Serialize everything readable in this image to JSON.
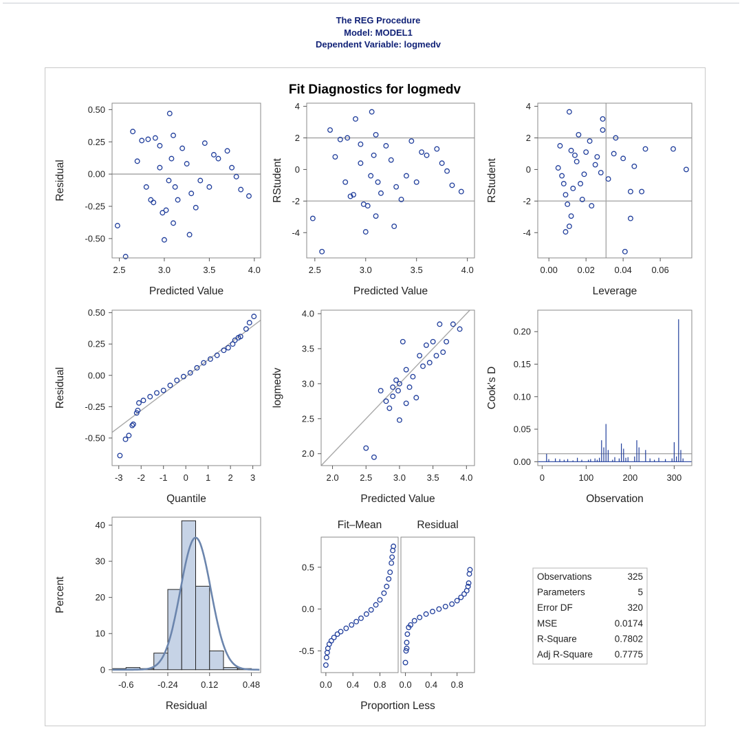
{
  "header": {
    "line1": "The REG Procedure",
    "line2": "Model: MODEL1",
    "line3": "Dependent Variable: logmedv"
  },
  "colors": {
    "header_text": "#112277",
    "markers": "#1f3d9b",
    "bar_fill": "#c6d3e6",
    "density_curve": "#6b85ad",
    "reference_lines": "#a8a8a8"
  },
  "chart_data": [
    {
      "id": "title",
      "type": "text",
      "title": "Fit Diagnostics for logmedv"
    },
    {
      "id": "resid_vs_pred",
      "type": "scatter",
      "xlabel": "Predicted Value",
      "ylabel": "Residual",
      "xlim": [
        2.42,
        4.07
      ],
      "ylim": [
        -0.65,
        0.55
      ],
      "xticks": [
        "2.5",
        "3.0",
        "3.5",
        "4.0"
      ],
      "yticks": [
        "0.50",
        "0.25",
        "0.00",
        "-0.25",
        "-0.50"
      ],
      "reference_y": [
        0
      ],
      "points": [
        [
          2.48,
          -0.4
        ],
        [
          2.57,
          -0.64
        ],
        [
          2.65,
          0.33
        ],
        [
          3.06,
          0.47
        ],
        [
          3.0,
          -0.51
        ],
        [
          3.28,
          -0.47
        ],
        [
          3.1,
          -0.38
        ],
        [
          2.98,
          -0.3
        ],
        [
          3.02,
          -0.28
        ],
        [
          2.85,
          -0.2
        ],
        [
          2.88,
          -0.22
        ],
        [
          3.35,
          -0.26
        ],
        [
          3.94,
          -0.17
        ],
        [
          3.85,
          -0.12
        ],
        [
          3.7,
          0.18
        ],
        [
          3.45,
          0.24
        ],
        [
          2.75,
          0.26
        ],
        [
          2.82,
          0.27
        ],
        [
          2.9,
          0.28
        ],
        [
          3.1,
          0.3
        ],
        [
          2.95,
          0.22
        ],
        [
          3.2,
          0.2
        ],
        [
          2.7,
          0.1
        ],
        [
          3.6,
          0.12
        ],
        [
          3.5,
          -0.1
        ],
        [
          3.3,
          -0.15
        ],
        [
          3.15,
          -0.2
        ],
        [
          2.95,
          0.05
        ],
        [
          3.05,
          -0.05
        ],
        [
          3.25,
          0.08
        ],
        [
          3.4,
          -0.05
        ],
        [
          3.75,
          0.05
        ],
        [
          3.8,
          -0.02
        ],
        [
          3.55,
          0.15
        ],
        [
          2.8,
          -0.1
        ],
        [
          3.08,
          0.12
        ],
        [
          3.12,
          -0.1
        ]
      ]
    },
    {
      "id": "rstudent_vs_pred",
      "type": "scatter",
      "xlabel": "Predicted Value",
      "ylabel": "RStudent",
      "xlim": [
        2.42,
        4.07
      ],
      "ylim": [
        -5.6,
        4.2
      ],
      "xticks": [
        "2.5",
        "3.0",
        "3.5",
        "4.0"
      ],
      "yticks": [
        "4",
        "2",
        "0",
        "-2",
        "-4"
      ],
      "reference_y": [
        -2,
        2
      ],
      "points": [
        [
          2.48,
          -3.1
        ],
        [
          2.57,
          -5.2
        ],
        [
          2.65,
          2.5
        ],
        [
          3.06,
          3.65
        ],
        [
          3.0,
          -3.95
        ],
        [
          3.28,
          -3.6
        ],
        [
          3.1,
          -2.95
        ],
        [
          2.98,
          -2.2
        ],
        [
          3.02,
          -2.3
        ],
        [
          2.85,
          -1.7
        ],
        [
          2.88,
          -1.6
        ],
        [
          3.35,
          -1.9
        ],
        [
          3.94,
          -1.4
        ],
        [
          3.85,
          -1.0
        ],
        [
          3.7,
          1.3
        ],
        [
          3.45,
          1.8
        ],
        [
          2.75,
          1.9
        ],
        [
          2.82,
          2.0
        ],
        [
          2.9,
          3.2
        ],
        [
          3.1,
          2.2
        ],
        [
          2.95,
          1.6
        ],
        [
          3.2,
          1.5
        ],
        [
          2.7,
          0.8
        ],
        [
          3.6,
          0.9
        ],
        [
          3.5,
          -0.8
        ],
        [
          3.3,
          -1.1
        ],
        [
          3.15,
          -1.5
        ],
        [
          2.95,
          0.4
        ],
        [
          3.05,
          -0.4
        ],
        [
          3.25,
          0.6
        ],
        [
          3.4,
          -0.4
        ],
        [
          3.75,
          0.4
        ],
        [
          3.8,
          -0.1
        ],
        [
          3.55,
          1.1
        ],
        [
          2.8,
          -0.8
        ],
        [
          3.08,
          0.9
        ],
        [
          3.12,
          -0.8
        ]
      ]
    },
    {
      "id": "rstudent_vs_leverage",
      "type": "scatter",
      "xlabel": "Leverage",
      "ylabel": "RStudent",
      "xlim": [
        -0.006,
        0.077
      ],
      "ylim": [
        -5.6,
        4.2
      ],
      "xticks": [
        "0.00",
        "0.02",
        "0.04",
        "0.06"
      ],
      "yticks": [
        "4",
        "2",
        "0",
        "-2",
        "-4"
      ],
      "reference_y": [
        -2,
        2
      ],
      "reference_x": [
        0.0308
      ],
      "points": [
        [
          0.011,
          3.65
        ],
        [
          0.029,
          3.2
        ],
        [
          0.029,
          2.5
        ],
        [
          0.036,
          2.0
        ],
        [
          0.018,
          -1.9
        ],
        [
          0.023,
          -2.3
        ],
        [
          0.012,
          -2.95
        ],
        [
          0.011,
          -3.6
        ],
        [
          0.009,
          -3.95
        ],
        [
          0.041,
          -5.2
        ],
        [
          0.044,
          -3.1
        ],
        [
          0.052,
          1.3
        ],
        [
          0.067,
          1.3
        ],
        [
          0.074,
          0.0
        ],
        [
          0.044,
          -1.4
        ],
        [
          0.05,
          -1.4
        ],
        [
          0.046,
          0.2
        ],
        [
          0.04,
          0.7
        ],
        [
          0.035,
          1.0
        ],
        [
          0.032,
          -0.6
        ],
        [
          0.025,
          0.3
        ],
        [
          0.02,
          1.1
        ],
        [
          0.015,
          0.5
        ],
        [
          0.005,
          0.1
        ],
        [
          0.007,
          -0.4
        ],
        [
          0.013,
          -1.2
        ],
        [
          0.017,
          -0.9
        ],
        [
          0.028,
          -0.2
        ],
        [
          0.022,
          1.8
        ],
        [
          0.016,
          2.2
        ],
        [
          0.006,
          1.5
        ],
        [
          0.009,
          -1.6
        ],
        [
          0.01,
          -2.2
        ],
        [
          0.014,
          0.9
        ],
        [
          0.008,
          -0.9
        ],
        [
          0.012,
          1.2
        ],
        [
          0.019,
          -0.3
        ],
        [
          0.026,
          0.8
        ]
      ]
    },
    {
      "id": "resid_qq",
      "type": "scatter",
      "xlabel": "Quantile",
      "ylabel": "Residual",
      "xlim": [
        -3.3,
        3.35
      ],
      "ylim": [
        -0.72,
        0.52
      ],
      "xticks": [
        "-3",
        "-2",
        "-1",
        "0",
        "1",
        "2",
        "3"
      ],
      "yticks": [
        "0.50",
        "0.25",
        "0.00",
        "-0.25",
        "-0.50"
      ],
      "reference_line": [
        [
          -3.3,
          -0.455
        ],
        [
          3.35,
          0.44
        ]
      ],
      "points": [
        [
          -2.95,
          -0.64
        ],
        [
          -2.7,
          -0.51
        ],
        [
          -2.55,
          -0.48
        ],
        [
          -2.4,
          -0.4
        ],
        [
          -2.35,
          -0.39
        ],
        [
          -2.2,
          -0.3
        ],
        [
          -2.15,
          -0.28
        ],
        [
          -2.1,
          -0.22
        ],
        [
          -1.9,
          -0.2
        ],
        [
          -1.6,
          -0.17
        ],
        [
          -1.3,
          -0.14
        ],
        [
          -1.0,
          -0.12
        ],
        [
          -0.7,
          -0.08
        ],
        [
          -0.4,
          -0.04
        ],
        [
          -0.1,
          -0.01
        ],
        [
          0.2,
          0.02
        ],
        [
          0.5,
          0.06
        ],
        [
          0.8,
          0.1
        ],
        [
          1.1,
          0.13
        ],
        [
          1.4,
          0.16
        ],
        [
          1.7,
          0.2
        ],
        [
          1.9,
          0.22
        ],
        [
          2.1,
          0.25
        ],
        [
          2.2,
          0.28
        ],
        [
          2.35,
          0.3
        ],
        [
          2.45,
          0.31
        ],
        [
          2.7,
          0.37
        ],
        [
          2.85,
          0.42
        ],
        [
          3.05,
          0.47
        ]
      ]
    },
    {
      "id": "obs_vs_pred",
      "type": "scatter",
      "xlabel": "Predicted Value",
      "ylabel": "logmedv",
      "xlim": [
        1.83,
        4.12
      ],
      "ylim": [
        1.83,
        4.05
      ],
      "xticks": [
        "2.0",
        "2.5",
        "3.0",
        "3.5",
        "4.0"
      ],
      "yticks": [
        "4.0",
        "3.5",
        "3.0",
        "2.5",
        "2.0"
      ],
      "reference_line": [
        [
          1.83,
          1.83
        ],
        [
          4.05,
          4.05
        ]
      ],
      "points": [
        [
          2.5,
          2.08
        ],
        [
          2.62,
          1.95
        ],
        [
          3.0,
          2.48
        ],
        [
          2.72,
          2.9
        ],
        [
          2.8,
          2.75
        ],
        [
          2.85,
          2.65
        ],
        [
          2.9,
          2.82
        ],
        [
          3.1,
          2.72
        ],
        [
          3.25,
          2.8
        ],
        [
          3.05,
          3.6
        ],
        [
          3.3,
          3.4
        ],
        [
          3.6,
          3.85
        ],
        [
          3.8,
          3.85
        ],
        [
          3.9,
          3.78
        ],
        [
          3.7,
          3.6
        ],
        [
          3.5,
          3.6
        ],
        [
          3.4,
          3.55
        ],
        [
          3.45,
          3.3
        ],
        [
          3.2,
          3.1
        ],
        [
          3.0,
          3.0
        ],
        [
          2.95,
          3.05
        ],
        [
          2.9,
          2.95
        ],
        [
          3.1,
          3.2
        ],
        [
          3.55,
          3.4
        ],
        [
          3.65,
          3.45
        ],
        [
          3.35,
          3.25
        ],
        [
          2.98,
          2.9
        ],
        [
          3.15,
          2.95
        ]
      ]
    },
    {
      "id": "cooks_d",
      "type": "bar",
      "xlabel": "Observation",
      "ylabel": "Cook's D",
      "xlim": [
        -10,
        340
      ],
      "ylim": [
        -0.006,
        0.233
      ],
      "xticks": [
        "0",
        "100",
        "200",
        "300"
      ],
      "yticks": [
        "0.20",
        "0.15",
        "0.10",
        "0.05",
        "0.00"
      ],
      "reference_y": [
        0.0123
      ],
      "x": [
        10,
        15,
        30,
        40,
        50,
        58,
        70,
        80,
        90,
        105,
        110,
        120,
        125,
        130,
        135,
        140,
        145,
        150,
        160,
        165,
        175,
        180,
        185,
        190,
        195,
        210,
        215,
        220,
        235,
        245,
        255,
        265,
        280,
        295,
        300,
        305,
        310,
        315,
        320
      ],
      "values": [
        0.012,
        0.004,
        0.005,
        0.004,
        0.003,
        0.004,
        0.002,
        0.006,
        0.003,
        0.003,
        0.004,
        0.005,
        0.003,
        0.006,
        0.033,
        0.022,
        0.058,
        0.018,
        0.003,
        0.007,
        0.005,
        0.028,
        0.02,
        0.006,
        0.007,
        0.008,
        0.033,
        0.022,
        0.018,
        0.005,
        0.003,
        0.006,
        0.004,
        0.005,
        0.03,
        0.008,
        0.219,
        0.018,
        0.005
      ]
    },
    {
      "id": "resid_hist",
      "type": "bar",
      "xlabel": "Residual",
      "ylabel": "Percent",
      "xlim": [
        -0.72,
        0.56
      ],
      "ylim": [
        -0.8,
        42.2
      ],
      "xticks": [
        "-0.6",
        "-0.24",
        "0.12",
        "0.48"
      ],
      "yticks": [
        "40",
        "30",
        "20",
        "10",
        "0"
      ],
      "categories": [
        "-0.66",
        "-0.54",
        "-0.42",
        "-0.30",
        "-0.18",
        "-0.06",
        "0.06",
        "0.18",
        "0.30",
        "0.42"
      ],
      "bin_width": 0.12,
      "values": [
        0.3,
        0.6,
        0.3,
        4.6,
        22.2,
        41.2,
        23.1,
        5.2,
        0.6,
        0.3
      ],
      "density_curve": "normal"
    },
    {
      "id": "rf_fit_mean",
      "type": "scatter",
      "title": "Fit–Mean",
      "xlabel": "Proportion Less",
      "xlim": [
        -0.07,
        1.07
      ],
      "ylim": [
        -0.76,
        0.86
      ],
      "xticks": [
        "0.0",
        "0.4",
        "0.8"
      ],
      "yticks": [
        "0.5",
        "0.0",
        "-0.5"
      ],
      "points": [
        [
          0.0,
          -0.67
        ],
        [
          0.01,
          -0.58
        ],
        [
          0.02,
          -0.52
        ],
        [
          0.03,
          -0.47
        ],
        [
          0.05,
          -0.42
        ],
        [
          0.08,
          -0.38
        ],
        [
          0.12,
          -0.34
        ],
        [
          0.17,
          -0.3
        ],
        [
          0.22,
          -0.27
        ],
        [
          0.3,
          -0.23
        ],
        [
          0.38,
          -0.19
        ],
        [
          0.45,
          -0.15
        ],
        [
          0.52,
          -0.11
        ],
        [
          0.6,
          -0.06
        ],
        [
          0.67,
          -0.01
        ],
        [
          0.74,
          0.05
        ],
        [
          0.8,
          0.11
        ],
        [
          0.86,
          0.19
        ],
        [
          0.9,
          0.27
        ],
        [
          0.93,
          0.36
        ],
        [
          0.95,
          0.44
        ],
        [
          0.97,
          0.55
        ],
        [
          0.98,
          0.62
        ],
        [
          0.99,
          0.7
        ],
        [
          1.0,
          0.75
        ]
      ]
    },
    {
      "id": "rf_residual",
      "type": "scatter",
      "title": "Residual",
      "xlabel": "",
      "xlim": [
        -0.07,
        1.07
      ],
      "ylim": [
        -0.76,
        0.86
      ],
      "xticks": [
        "0.0",
        "0.4",
        "0.8"
      ],
      "points": [
        [
          0.0,
          -0.64
        ],
        [
          0.01,
          -0.5
        ],
        [
          0.02,
          -0.47
        ],
        [
          0.02,
          -0.4
        ],
        [
          0.03,
          -0.3
        ],
        [
          0.05,
          -0.22
        ],
        [
          0.08,
          -0.19
        ],
        [
          0.14,
          -0.14
        ],
        [
          0.22,
          -0.1
        ],
        [
          0.32,
          -0.06
        ],
        [
          0.42,
          -0.03
        ],
        [
          0.52,
          0.0
        ],
        [
          0.62,
          0.03
        ],
        [
          0.72,
          0.06
        ],
        [
          0.8,
          0.1
        ],
        [
          0.86,
          0.14
        ],
        [
          0.91,
          0.18
        ],
        [
          0.95,
          0.22
        ],
        [
          0.97,
          0.27
        ],
        [
          0.98,
          0.31
        ],
        [
          0.99,
          0.42
        ],
        [
          1.0,
          0.47
        ]
      ]
    }
  ],
  "fit_stats": [
    {
      "label": "Observations",
      "value": "325"
    },
    {
      "label": "Parameters",
      "value": "5"
    },
    {
      "label": "Error DF",
      "value": "320"
    },
    {
      "label": "MSE",
      "value": "0.0174"
    },
    {
      "label": "R-Square",
      "value": "0.7802"
    },
    {
      "label": "Adj R-Square",
      "value": "0.7775"
    }
  ]
}
